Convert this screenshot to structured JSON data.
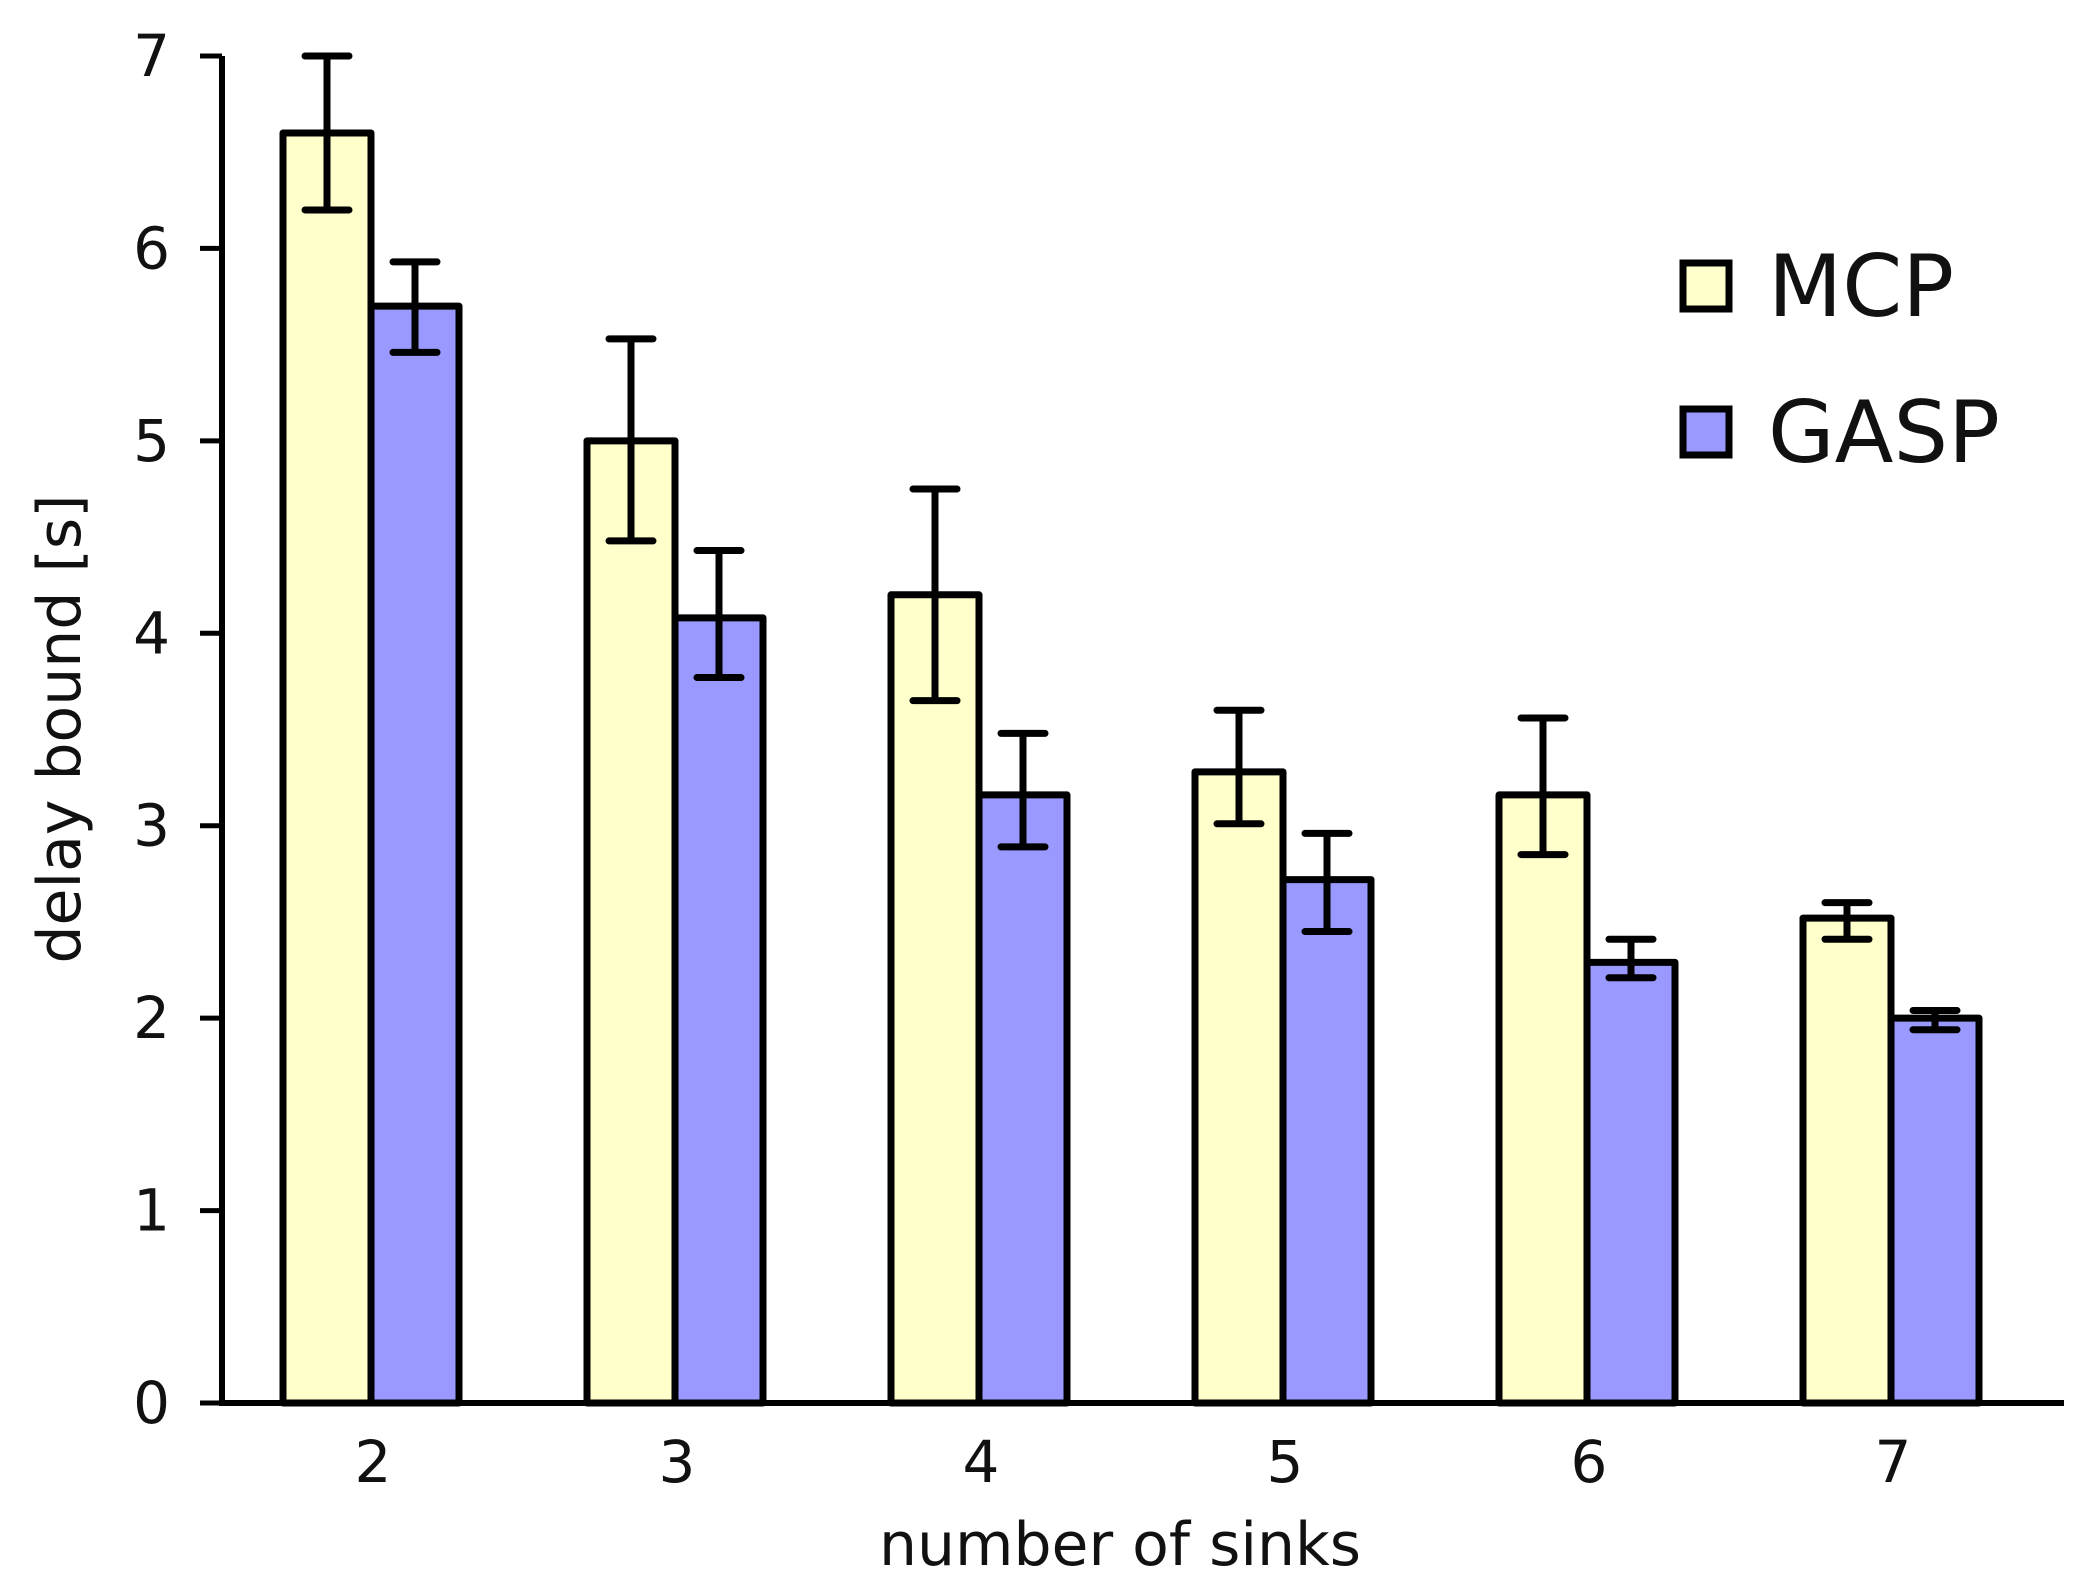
{
  "chart_data": {
    "type": "bar",
    "title": "",
    "xlabel": "number of sinks",
    "ylabel": "delay bound [s]",
    "ylim": [
      0,
      7
    ],
    "yticks": [
      0,
      1,
      2,
      3,
      4,
      5,
      6,
      7
    ],
    "categories": [
      "2",
      "3",
      "4",
      "5",
      "6",
      "7"
    ],
    "series": [
      {
        "name": "MCP",
        "color": "#ffffcc",
        "values": [
          6.6,
          5.0,
          4.2,
          3.28,
          3.16,
          2.52
        ],
        "error_low": [
          6.2,
          4.48,
          3.65,
          3.01,
          2.85,
          2.41
        ],
        "error_high": [
          7.0,
          5.53,
          4.75,
          3.6,
          3.56,
          2.6
        ]
      },
      {
        "name": "GASP",
        "color": "#9999ff",
        "values": [
          5.7,
          4.08,
          3.16,
          2.72,
          2.29,
          2.0
        ],
        "error_low": [
          5.46,
          3.77,
          2.89,
          2.45,
          2.21,
          1.94
        ],
        "error_high": [
          5.93,
          4.43,
          3.48,
          2.96,
          2.41,
          2.04
        ]
      }
    ],
    "legend": {
      "position": "top-right"
    },
    "grid": false
  }
}
